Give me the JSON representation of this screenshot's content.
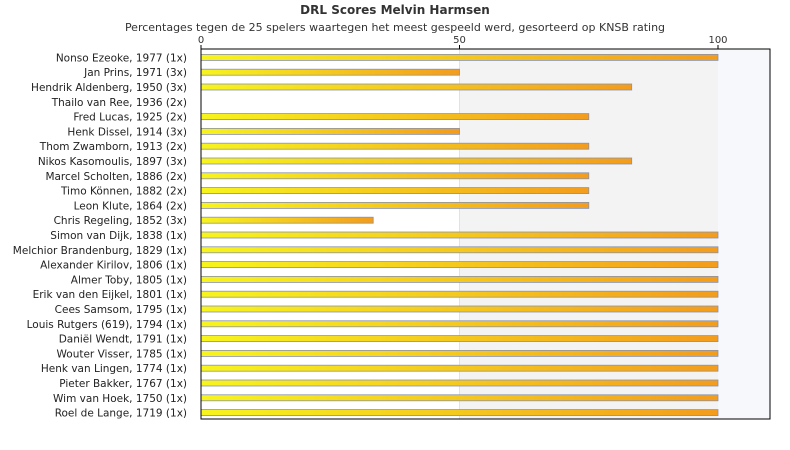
{
  "chart_data": {
    "type": "bar",
    "orientation": "horizontal",
    "title": "DRL Scores Melvin Harmsen",
    "subtitle": "Percentages tegen de 25 spelers waartegen het meest gespeeld werd, gesorteerd op KNSB rating",
    "xlim": [
      0,
      110
    ],
    "xticks": [
      0,
      50,
      100
    ],
    "grid": false,
    "legend": "none",
    "colors": {
      "bar_left": "#f7f41e",
      "bar_right": "#f39c1d",
      "bar_border": "#8a93a8",
      "band_shade": "#f3f3f3",
      "band_light": "#f7f8fc",
      "axis": "#000000"
    },
    "categories": [
      "Nonso Ezeoke, 1977 (1x)",
      "Jan Prins, 1971 (3x)",
      "Hendrik Aldenberg, 1950 (3x)",
      "Thailo van Ree, 1936 (2x)",
      "Fred Lucas, 1925 (2x)",
      "Henk Dissel, 1914 (3x)",
      "Thom Zwamborn, 1913 (2x)",
      "Nikos Kasomoulis, 1897 (3x)",
      "Marcel Scholten, 1886 (2x)",
      "Timo Können, 1882 (2x)",
      "Leon Klute, 1864 (2x)",
      "Chris Regeling, 1852 (3x)",
      "Simon van Dijk, 1838 (1x)",
      "Melchior Brandenburg, 1829 (1x)",
      "Alexander Kirilov, 1806 (1x)",
      "Almer Toby, 1805 (1x)",
      "Erik van den Eijkel, 1801 (1x)",
      "Cees Samsom, 1795 (1x)",
      "Louis Rutgers (619), 1794 (1x)",
      "Daniël Wendt, 1791 (1x)",
      "Wouter Visser, 1785 (1x)",
      "Henk van Lingen, 1774 (1x)",
      "Pieter Bakker, 1767 (1x)",
      "Wim van Hoek, 1750 (1x)",
      "Roel de Lange, 1719 (1x)"
    ],
    "values": [
      100,
      50,
      83.3,
      0,
      75,
      50,
      75,
      83.3,
      75,
      75,
      75,
      33.3,
      100,
      100,
      100,
      100,
      100,
      100,
      100,
      100,
      100,
      100,
      100,
      100,
      100
    ]
  }
}
